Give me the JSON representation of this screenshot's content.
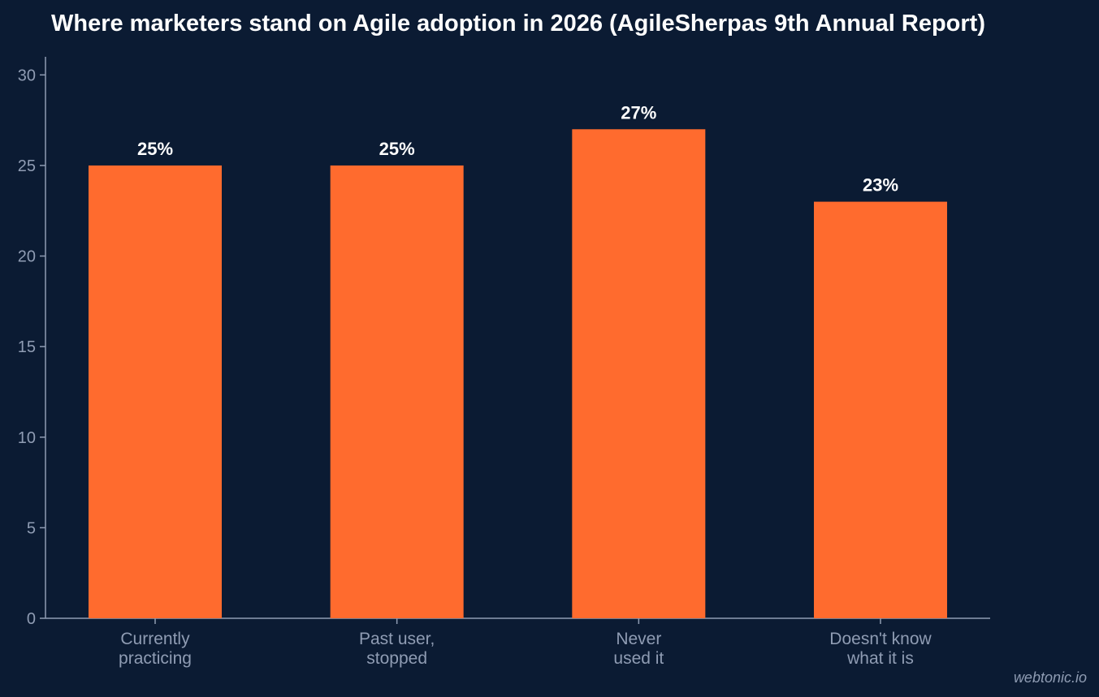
{
  "chart_data": {
    "type": "bar",
    "title": "Where marketers stand on Agile adoption in 2026 (AgileSherpas 9th Annual Report)",
    "categories": [
      [
        "Currently",
        "practicing"
      ],
      [
        "Past user,",
        "stopped"
      ],
      [
        "Never",
        "used it"
      ],
      [
        "Doesn't know",
        "what it is"
      ]
    ],
    "values": [
      25,
      25,
      27,
      23
    ],
    "value_labels": [
      "25%",
      "25%",
      "27%",
      "23%"
    ],
    "yticks": [
      0,
      5,
      10,
      15,
      20,
      25,
      30
    ],
    "ylim": [
      0,
      31
    ],
    "xlabel": "",
    "ylabel": "",
    "grid": false,
    "colors": {
      "bar": "#ff6b2e",
      "background": "#0b1b33"
    }
  },
  "watermark": "webtonic.io"
}
